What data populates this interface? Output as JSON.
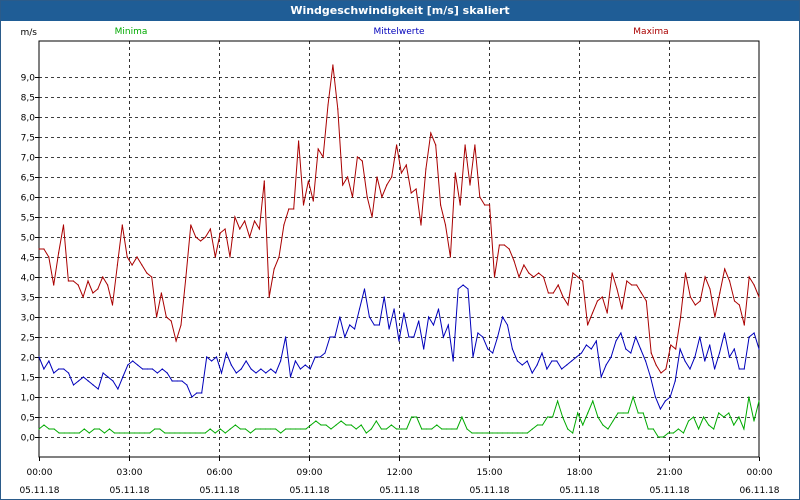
{
  "title": "Windgeschwindigkeit [m/s] skaliert",
  "chart_data": {
    "type": "line",
    "title": "Windgeschwindigkeit [m/s] skaliert",
    "ylabel": "m/s",
    "xlabel": "",
    "ylim": [
      -0.5,
      9.9
    ],
    "xlim": [
      0,
      24
    ],
    "grid": true,
    "legend_position": "top",
    "yticks": [
      "0,0",
      "0,5",
      "1,0",
      "1,5",
      "2,0",
      "2,5",
      "3,0",
      "3,5",
      "4,0",
      "4,5",
      "5,0",
      "5,5",
      "6,0",
      "6,5",
      "7,0",
      "7,5",
      "8,0",
      "8,5",
      "9,0"
    ],
    "xticks": [
      {
        "time": "00:00",
        "date": "05.11.18"
      },
      {
        "time": "03:00",
        "date": "05.11.18"
      },
      {
        "time": "06:00",
        "date": "05.11.18"
      },
      {
        "time": "09:00",
        "date": "05.11.18"
      },
      {
        "time": "12:00",
        "date": "05.11.18"
      },
      {
        "time": "15:00",
        "date": "05.11.18"
      },
      {
        "time": "18:00",
        "date": "05.11.18"
      },
      {
        "time": "21:00",
        "date": "05.11.18"
      },
      {
        "time": "00:00",
        "date": "06.11.18"
      }
    ],
    "series": [
      {
        "name": "Minima",
        "color": "#00aa00",
        "values": [
          0.2,
          0.3,
          0.2,
          0.2,
          0.1,
          0.1,
          0.1,
          0.1,
          0.1,
          0.2,
          0.1,
          0.2,
          0.2,
          0.1,
          0.2,
          0.1,
          0.1,
          0.1,
          0.1,
          0.1,
          0.1,
          0.1,
          0.1,
          0.2,
          0.2,
          0.1,
          0.1,
          0.1,
          0.1,
          0.1,
          0.1,
          0.1,
          0.1,
          0.1,
          0.2,
          0.1,
          0.2,
          0.1,
          0.2,
          0.3,
          0.2,
          0.2,
          0.1,
          0.2,
          0.2,
          0.2,
          0.2,
          0.2,
          0.1,
          0.2,
          0.2,
          0.2,
          0.2,
          0.2,
          0.3,
          0.4,
          0.3,
          0.3,
          0.2,
          0.3,
          0.4,
          0.3,
          0.3,
          0.2,
          0.3,
          0.1,
          0.2,
          0.4,
          0.2,
          0.2,
          0.3,
          0.2,
          0.2,
          0.2,
          0.5,
          0.5,
          0.2,
          0.2,
          0.2,
          0.3,
          0.2,
          0.2,
          0.2,
          0.2,
          0.5,
          0.2,
          0.1,
          0.1,
          0.1,
          0.1,
          0.1,
          0.1,
          0.1,
          0.1,
          0.1,
          0.1,
          0.1,
          0.1,
          0.2,
          0.3,
          0.3,
          0.5,
          0.5,
          0.9,
          0.5,
          0.2,
          0.1,
          0.6,
          0.3,
          0.6,
          0.9,
          0.5,
          0.3,
          0.2,
          0.4,
          0.6,
          0.6,
          0.6,
          1.0,
          0.6,
          0.6,
          0.2,
          0.2,
          0.0,
          0.0,
          0.1,
          0.1,
          0.2,
          0.1,
          0.4,
          0.5,
          0.2,
          0.5,
          0.3,
          0.2,
          0.6,
          0.5,
          0.6,
          0.3,
          0.5,
          0.2,
          1.0,
          0.4,
          0.9
        ]
      },
      {
        "name": "Mittelwerte",
        "color": "#0000bb",
        "values": [
          2.0,
          1.7,
          1.9,
          1.6,
          1.7,
          1.7,
          1.6,
          1.3,
          1.4,
          1.5,
          1.4,
          1.3,
          1.2,
          1.6,
          1.5,
          1.4,
          1.2,
          1.5,
          1.8,
          1.9,
          1.8,
          1.7,
          1.7,
          1.7,
          1.6,
          1.7,
          1.6,
          1.4,
          1.4,
          1.4,
          1.3,
          1.0,
          1.1,
          1.1,
          2.0,
          1.9,
          2.0,
          1.6,
          2.1,
          1.8,
          1.6,
          1.7,
          1.9,
          1.7,
          1.6,
          1.7,
          1.6,
          1.7,
          1.6,
          1.9,
          2.5,
          1.5,
          1.9,
          1.7,
          1.8,
          1.7,
          2.0,
          2.0,
          2.1,
          2.5,
          2.5,
          3.0,
          2.5,
          2.8,
          2.7,
          3.2,
          3.7,
          3.0,
          2.8,
          2.8,
          3.5,
          2.7,
          3.2,
          2.4,
          3.1,
          2.5,
          2.5,
          2.9,
          2.2,
          3.0,
          2.8,
          3.2,
          2.5,
          2.8,
          1.9,
          3.7,
          3.8,
          3.7,
          2.0,
          2.6,
          2.5,
          2.2,
          2.1,
          2.5,
          3.0,
          2.8,
          2.2,
          1.9,
          1.8,
          1.9,
          1.6,
          1.8,
          2.1,
          1.7,
          1.9,
          1.9,
          1.7,
          1.8,
          1.9,
          2.0,
          2.1,
          2.3,
          2.2,
          2.4,
          1.5,
          1.8,
          2.0,
          2.4,
          2.6,
          2.2,
          2.1,
          2.5,
          2.2,
          1.9,
          1.5,
          1.0,
          0.7,
          0.9,
          1.0,
          1.4,
          2.2,
          1.9,
          1.7,
          2.0,
          2.5,
          1.9,
          2.3,
          1.7,
          2.1,
          2.6,
          2.0,
          2.2,
          1.7,
          1.7,
          2.5,
          2.6,
          2.2
        ]
      },
      {
        "name": "Maxima",
        "color": "#aa0000",
        "values": [
          4.7,
          4.7,
          4.5,
          3.8,
          4.6,
          5.3,
          3.9,
          3.9,
          3.8,
          3.5,
          3.9,
          3.6,
          3.7,
          4.0,
          3.8,
          3.3,
          4.3,
          5.3,
          4.5,
          4.3,
          4.5,
          4.3,
          4.1,
          4.0,
          3.0,
          3.6,
          3.0,
          2.9,
          2.4,
          2.8,
          4.0,
          5.3,
          5.0,
          4.9,
          5.0,
          5.2,
          4.5,
          5.1,
          5.2,
          4.5,
          5.5,
          5.2,
          5.4,
          5.0,
          5.4,
          5.2,
          6.4,
          3.5,
          4.2,
          4.5,
          5.3,
          5.7,
          5.7,
          7.4,
          5.8,
          6.4,
          5.9,
          7.2,
          7.0,
          8.3,
          9.3,
          8.2,
          6.3,
          6.5,
          6.0,
          7.0,
          6.9,
          6.0,
          5.5,
          6.5,
          6.0,
          6.3,
          6.5,
          7.3,
          6.6,
          6.8,
          6.1,
          6.2,
          5.3,
          6.7,
          7.6,
          7.3,
          5.8,
          5.3,
          4.5,
          6.6,
          5.8,
          7.3,
          6.3,
          7.3,
          6.0,
          5.8,
          5.8,
          4.0,
          4.8,
          4.8,
          4.7,
          4.4,
          4.0,
          4.3,
          4.1,
          4.0,
          4.1,
          4.0,
          3.6,
          3.6,
          3.8,
          3.5,
          3.3,
          4.1,
          4.0,
          3.9,
          2.8,
          3.1,
          3.4,
          3.5,
          3.1,
          4.1,
          3.7,
          3.2,
          3.9,
          3.8,
          3.8,
          3.6,
          3.4,
          2.1,
          1.8,
          1.6,
          1.7,
          2.3,
          2.2,
          3.0,
          4.1,
          3.5,
          3.3,
          3.4,
          4.0,
          3.7,
          3.0,
          3.6,
          4.2,
          3.9,
          3.4,
          3.3,
          2.8,
          4.0,
          3.8,
          3.5
        ]
      }
    ]
  }
}
